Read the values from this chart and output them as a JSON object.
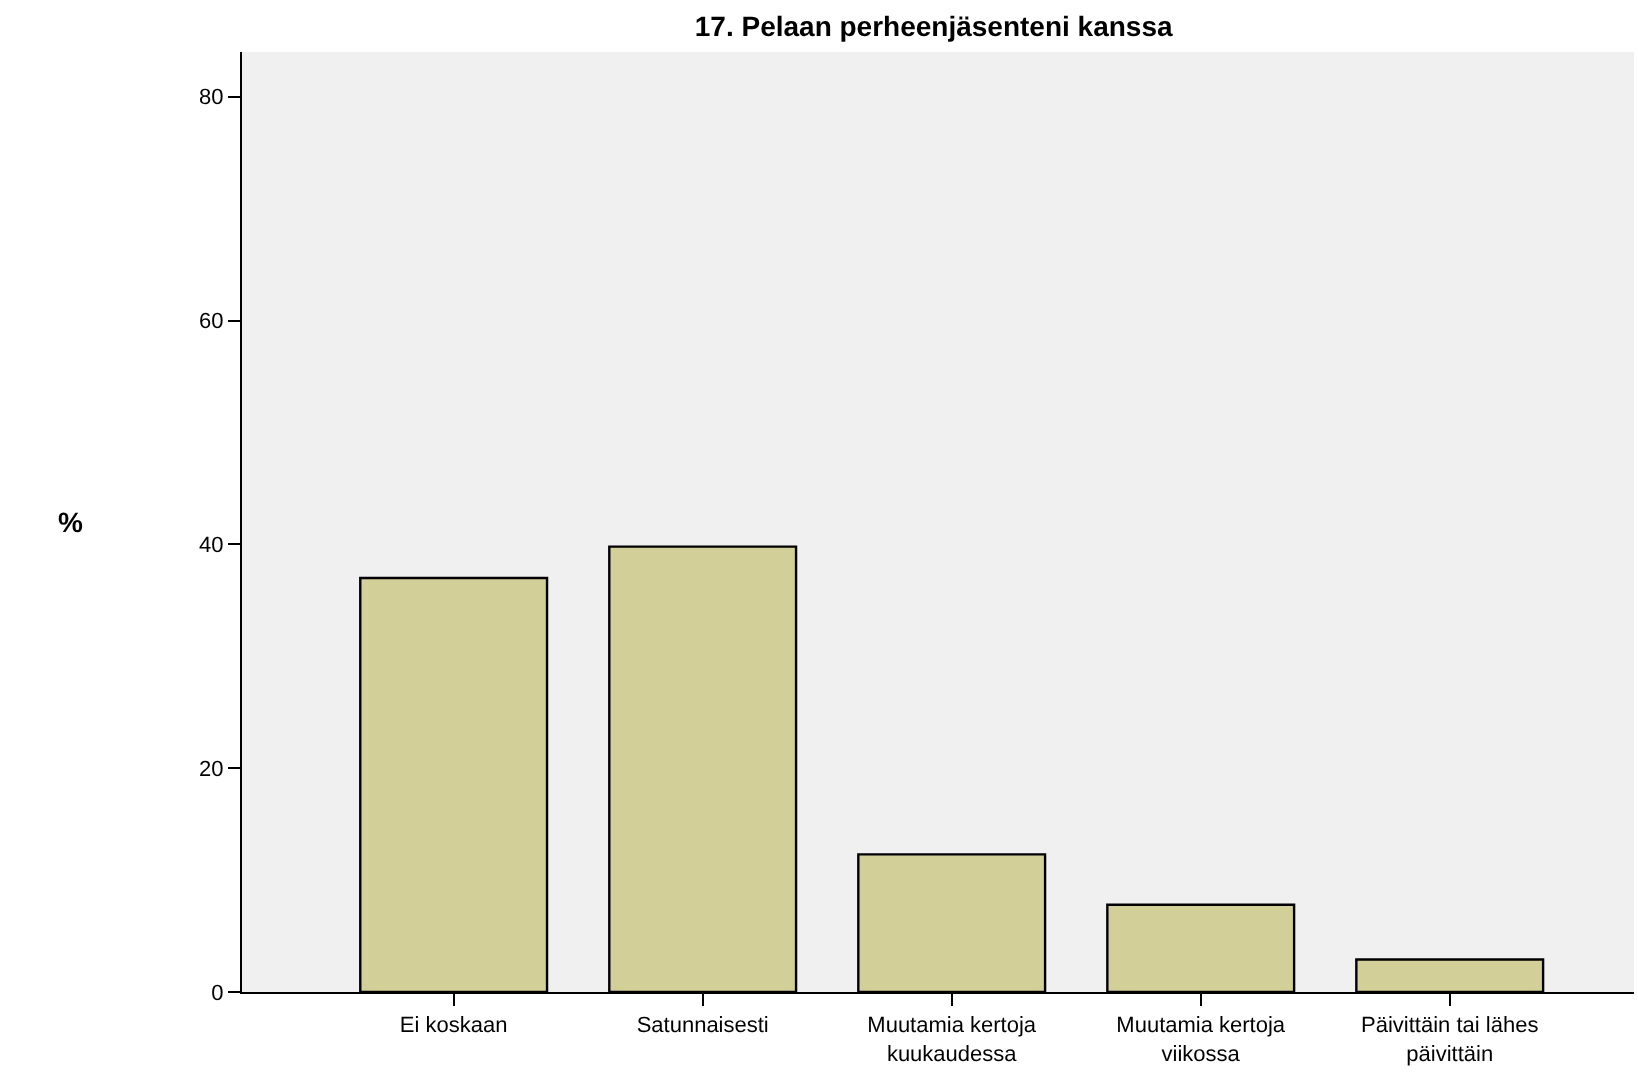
{
  "chart_data": {
    "type": "bar",
    "title": "17. Pelaan perheenjäsenteni kanssa",
    "ylabel": "%",
    "categories": [
      "Ei koskaan",
      "Satunnaisesti",
      "Muutamia kertoja\nkuukaudessa",
      "Muutamia kertoja\nviikossa",
      "Päivittäin tai lähes\npäivittäin"
    ],
    "values": [
      37.0,
      39.8,
      12.3,
      7.8,
      2.9
    ],
    "color": "#d3cf98",
    "ylim": [
      0,
      84
    ],
    "yticks": [
      0,
      20,
      40,
      60,
      80
    ],
    "grid": false,
    "legend": false
  }
}
